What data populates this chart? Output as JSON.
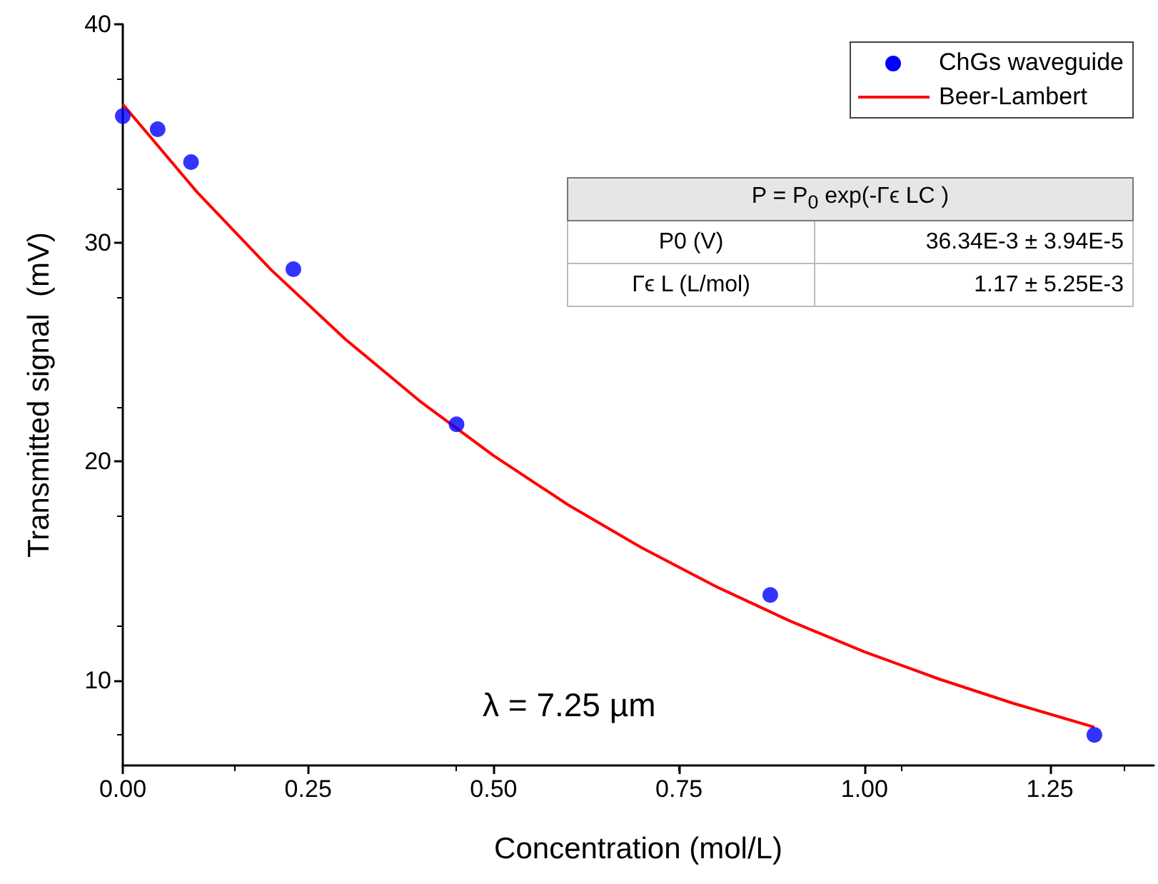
{
  "chart_data": {
    "type": "scatter",
    "xlabel": "Concentration (mol/L)",
    "ylabel": "Transmitted signal  (mV)",
    "xlim": [
      0,
      1.39
    ],
    "xticks": [
      {
        "value": 0,
        "label": "0.00"
      },
      {
        "value": 0.25,
        "label": "0.25"
      },
      {
        "value": 0.5,
        "label": "0.50"
      },
      {
        "value": 0.75,
        "label": "0.75"
      },
      {
        "value": 1,
        "label": "1.00"
      },
      {
        "value": 1.25,
        "label": "1.25"
      }
    ],
    "ylim": [
      6.1,
      40
    ],
    "yticks": [
      10,
      20,
      30,
      40
    ],
    "series": [
      {
        "name": "ChGs waveguide",
        "color": "#0000ff",
        "marker": "circle",
        "x": [
          0,
          0.047,
          0.092,
          0.23,
          0.45,
          0.873,
          1.31
        ],
        "values": [
          35.8,
          35.2,
          33.7,
          28.8,
          21.7,
          13.9,
          7.5
        ]
      },
      {
        "name": "Beer-Lambert",
        "type": "line",
        "color": "#ff0000",
        "marker": "none",
        "line_style": "solid",
        "x": [
          0,
          0.1,
          0.2,
          0.3,
          0.4,
          0.5,
          0.6,
          0.7,
          0.8,
          0.9,
          1.0,
          1.1,
          1.2,
          1.31
        ],
        "values": [
          36.34,
          32.33,
          28.77,
          25.6,
          22.78,
          20.27,
          18.03,
          16.05,
          14.28,
          12.7,
          11.3,
          10.06,
          8.95,
          7.85
        ]
      }
    ],
    "legend": "top right",
    "grid": false,
    "annotations": [
      "P = P$_{0}$ exp(-Γϵ LC )",
      "P0 (V)",
      "36.34E-3 ± 3.94E-5",
      "Γϵ L (L/mol)",
      "1.17 ± 5.25E-3",
      "λ = 7.25 µm"
    ]
  }
}
